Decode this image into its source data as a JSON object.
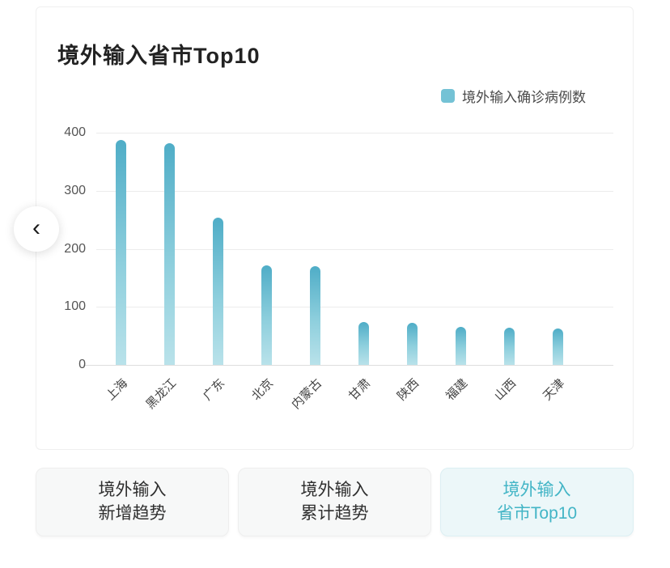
{
  "card": {
    "title": "境外输入省市Top10"
  },
  "legend": {
    "label": "境外输入确诊病例数",
    "swatch_color": "#74c2d5"
  },
  "nav": {
    "prev_icon": "‹"
  },
  "chart_data": {
    "type": "bar",
    "title": "境外输入省市Top10",
    "legend_entries": [
      "境外输入确诊病例数"
    ],
    "legend_position": "top-right",
    "categories": [
      "上海",
      "黑龙江",
      "广东",
      "北京",
      "内蒙古",
      "甘肃",
      "陕西",
      "福建",
      "山西",
      "天津"
    ],
    "values": [
      387,
      382,
      253,
      172,
      170,
      74,
      73,
      65,
      64,
      63
    ],
    "xlabel": "",
    "ylabel": "",
    "ylim": [
      0,
      400
    ],
    "yticks": [
      0,
      100,
      200,
      300,
      400
    ],
    "grid": true,
    "x_label_rotation": 45,
    "bar_color_top": "#4fadc7",
    "bar_color_mid": "#8ecfdd",
    "bar_color_bottom": "#b9e2ea"
  },
  "tabs": [
    {
      "line1": "境外输入",
      "line2": "新增趋势",
      "active": false
    },
    {
      "line1": "境外输入",
      "line2": "累计趋势",
      "active": false
    },
    {
      "line1": "境外输入",
      "line2": "省市Top10",
      "active": true
    }
  ],
  "colors": {
    "title_text": "#222222",
    "axis_text": "#555555",
    "gridline": "#ececec",
    "baseline": "#dedede",
    "tab_bg": "#f7f8f8",
    "tab_text": "#2f2f2f",
    "active_tab_bg": "#ecf7f9",
    "active_tab_border": "#dceff3",
    "active_tab_text": "#43b5c6"
  }
}
